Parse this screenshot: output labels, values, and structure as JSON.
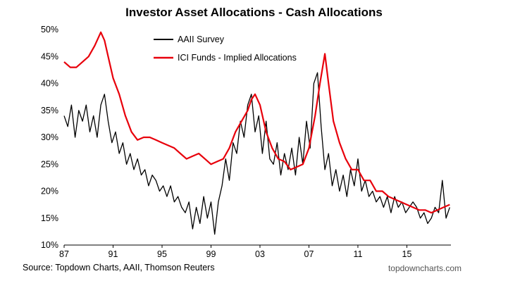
{
  "header": {
    "title": "Investor Asset Allocations - Cash Allocations"
  },
  "footer": {
    "source": "Source: Topdown Charts, AAII, Thomson Reuters",
    "brand": "topdowncharts.com"
  },
  "chart_data": {
    "type": "line",
    "title": "Investor Asset Allocations - Cash Allocations",
    "xlabel": "",
    "ylabel": "",
    "xlim": [
      1987,
      2018.6
    ],
    "ylim": [
      10,
      50
    ],
    "x_ticks": [
      1987,
      1991,
      1995,
      1999,
      2003,
      2007,
      2011,
      2015
    ],
    "x_tick_labels": [
      "87",
      "91",
      "95",
      "99",
      "03",
      "07",
      "11",
      "15"
    ],
    "y_ticks": [
      10,
      15,
      20,
      25,
      30,
      35,
      40,
      45,
      50
    ],
    "y_tick_labels": [
      "10%",
      "15%",
      "20%",
      "25%",
      "30%",
      "35%",
      "40%",
      "45%",
      "50%"
    ],
    "legend_position": "top-center",
    "grid": false,
    "series": [
      {
        "name": "AAII Survey",
        "color": "#000000",
        "x": [
          1987.0,
          1987.3,
          1987.6,
          1987.9,
          1988.2,
          1988.5,
          1988.8,
          1989.1,
          1989.4,
          1989.7,
          1990.0,
          1990.3,
          1990.6,
          1990.9,
          1991.2,
          1991.5,
          1991.8,
          1992.1,
          1992.4,
          1992.7,
          1993.0,
          1993.3,
          1993.6,
          1993.9,
          1994.2,
          1994.5,
          1994.8,
          1995.1,
          1995.4,
          1995.7,
          1996.0,
          1996.3,
          1996.6,
          1996.9,
          1997.2,
          1997.5,
          1997.8,
          1998.1,
          1998.4,
          1998.7,
          1999.0,
          1999.3,
          1999.6,
          1999.9,
          2000.2,
          2000.5,
          2000.8,
          2001.1,
          2001.4,
          2001.7,
          2002.0,
          2002.3,
          2002.6,
          2002.9,
          2003.2,
          2003.5,
          2003.8,
          2004.1,
          2004.4,
          2004.7,
          2005.0,
          2005.3,
          2005.6,
          2005.9,
          2006.2,
          2006.5,
          2006.8,
          2007.1,
          2007.4,
          2007.7,
          2008.0,
          2008.3,
          2008.6,
          2008.9,
          2009.2,
          2009.5,
          2009.8,
          2010.1,
          2010.4,
          2010.7,
          2011.0,
          2011.3,
          2011.6,
          2011.9,
          2012.2,
          2012.5,
          2012.8,
          2013.1,
          2013.4,
          2013.7,
          2014.0,
          2014.3,
          2014.6,
          2014.9,
          2015.2,
          2015.5,
          2015.8,
          2016.1,
          2016.4,
          2016.7,
          2017.0,
          2017.3,
          2017.6,
          2017.9,
          2018.2,
          2018.5
        ],
        "values": [
          34,
          32,
          36,
          30,
          35,
          33,
          36,
          31,
          34,
          30,
          36,
          38,
          33,
          29,
          31,
          27,
          29,
          25,
          27,
          24,
          26,
          23,
          24,
          21,
          23,
          22,
          20,
          21,
          19,
          21,
          18,
          19,
          17,
          16,
          18,
          13,
          17,
          14,
          19,
          15,
          18,
          12,
          18,
          21,
          26,
          22,
          29,
          27,
          33,
          30,
          36,
          38,
          31,
          34,
          27,
          33,
          26,
          25,
          29,
          23,
          27,
          24,
          28,
          23,
          30,
          25,
          33,
          28,
          40,
          42,
          32,
          24,
          27,
          21,
          24,
          20,
          23,
          19,
          24,
          21,
          26,
          20,
          22,
          19,
          20,
          18,
          19,
          17,
          19,
          16,
          19,
          17,
          18,
          16,
          17,
          18,
          17,
          15,
          16,
          14,
          15,
          17,
          16,
          22,
          15,
          17
        ]
      },
      {
        "name": "ICI Funds - Implied Allocations",
        "color": "#e8000b",
        "x": [
          1987.0,
          1987.5,
          1988.0,
          1988.5,
          1989.0,
          1989.5,
          1990.0,
          1990.3,
          1990.6,
          1991.0,
          1991.5,
          1992.0,
          1992.5,
          1993.0,
          1993.5,
          1994.0,
          1994.5,
          1995.0,
          1995.5,
          1996.0,
          1996.5,
          1997.0,
          1997.5,
          1998.0,
          1998.5,
          1999.0,
          1999.5,
          2000.0,
          2000.5,
          2001.0,
          2001.5,
          2002.0,
          2002.3,
          2002.6,
          2003.0,
          2003.5,
          2004.0,
          2004.5,
          2005.0,
          2005.5,
          2006.0,
          2006.5,
          2007.0,
          2007.5,
          2007.9,
          2008.3,
          2008.6,
          2009.0,
          2009.5,
          2010.0,
          2010.5,
          2011.0,
          2011.5,
          2012.0,
          2012.5,
          2013.0,
          2013.5,
          2014.0,
          2014.5,
          2015.0,
          2015.5,
          2016.0,
          2016.5,
          2017.0,
          2017.5,
          2018.0,
          2018.5
        ],
        "values": [
          44,
          43,
          43,
          44,
          45,
          47,
          49.5,
          48,
          45,
          41,
          38,
          34,
          31,
          29.5,
          30,
          30,
          29.5,
          29,
          28.5,
          28,
          27,
          26,
          26.5,
          27,
          26,
          25,
          25.5,
          26,
          28,
          31,
          33,
          35,
          37,
          38,
          36,
          31,
          28,
          26,
          25.5,
          24,
          24.5,
          25,
          28,
          34,
          40,
          45.5,
          40,
          33,
          29,
          26,
          24,
          24,
          22,
          22,
          20,
          20,
          19,
          18.5,
          18,
          17.5,
          17,
          16.5,
          16.5,
          16,
          16.5,
          17,
          17.5
        ]
      }
    ]
  }
}
